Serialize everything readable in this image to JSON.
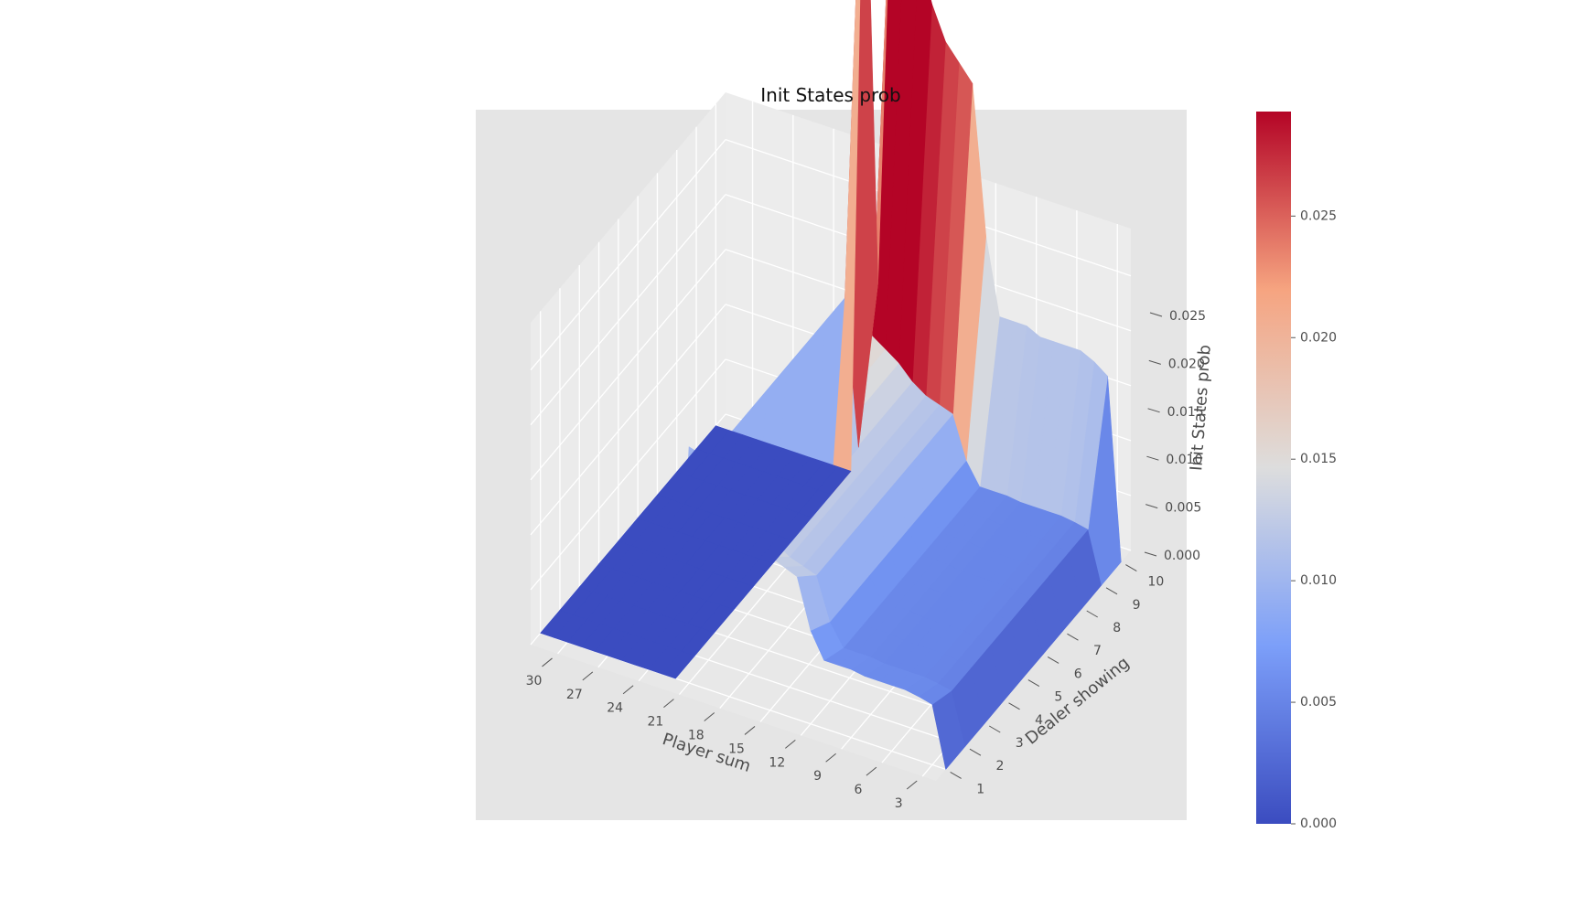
{
  "chart_data": {
    "type": "surface3d",
    "title": "Init States prob",
    "xlabel": "Player sum",
    "ylabel": "Dealer showing",
    "zlabel": "Init States prob",
    "colormap": "coolwarm",
    "background": "#e5e5e5",
    "x_ticks": [
      "30",
      "27",
      "24",
      "21",
      "18",
      "15",
      "12",
      "9",
      "6",
      "3"
    ],
    "y_ticks": [
      "1",
      "2",
      "3",
      "4",
      "5",
      "6",
      "7",
      "8",
      "9",
      "10"
    ],
    "z_ticks": [
      "0.000",
      "0.005",
      "0.010",
      "0.015",
      "0.020",
      "0.025"
    ],
    "colorbar_ticks": [
      "0.000",
      "0.005",
      "0.010",
      "0.015",
      "0.020",
      "0.025"
    ],
    "zlim": [
      0,
      0.0293
    ],
    "player_sum": [
      2,
      3,
      4,
      5,
      6,
      7,
      8,
      9,
      10,
      11,
      12,
      13,
      14,
      15,
      16,
      17,
      18,
      19,
      20,
      21,
      22,
      23,
      24,
      25,
      26,
      27,
      28,
      29,
      30,
      31,
      32
    ],
    "dealer_showing": [
      1,
      2,
      3,
      4,
      5,
      6,
      7,
      8,
      9,
      10
    ],
    "z_by_player_sum": [
      0,
      0.0055,
      0.0058,
      0.006,
      0.006,
      0.006,
      0.006,
      0.0062,
      0.0062,
      0.0062,
      0.0085,
      0.013,
      0.0135,
      0.014,
      0.015,
      0.0165,
      0.0175,
      0.0185,
      0.006,
      0.0215,
      0,
      0,
      0,
      0,
      0,
      0,
      0,
      0,
      0,
      0,
      0
    ],
    "dealer_factor": [
      1.0,
      0.85,
      0.85,
      0.85,
      0.85,
      0.85,
      0.85,
      0.85,
      0.85,
      3.0
    ]
  }
}
